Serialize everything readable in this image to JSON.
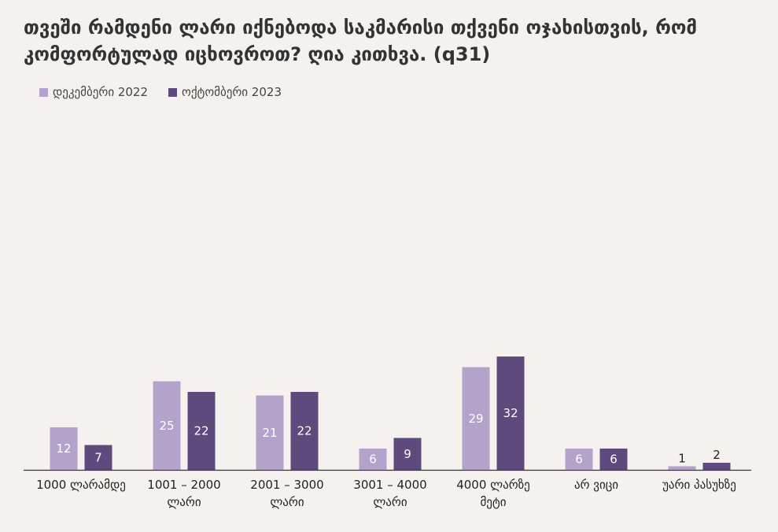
{
  "chart_data": {
    "type": "bar",
    "title": "თვეში რამდენი ლარი იქნებოდა საკმარისი თქვენი ოჯახისთვის, რომ კომფორტულად იცხოვროთ? ღია კითხვა. (q31)",
    "xlabel": "",
    "ylabel": "",
    "categories": [
      "1000 ლარამდე",
      "1001 – 2000 ლარი",
      "2001 – 3000 ლარი",
      "3001 – 4000 ლარი",
      "4000 ლარზე მეტი",
      "არ ვიცი",
      "უარი პასუხზე"
    ],
    "series": [
      {
        "name": "დეკემბერი 2022",
        "color": "#b3a2c9",
        "values": [
          12,
          25,
          21,
          6,
          29,
          6,
          1
        ]
      },
      {
        "name": "ოქტომბერი 2023",
        "color": "#5e4a7c",
        "values": [
          7,
          22,
          22,
          9,
          32,
          6,
          2
        ]
      }
    ],
    "ylim": [
      0,
      40
    ],
    "grid": false,
    "legend_position": "top-left",
    "data_labels": true
  }
}
